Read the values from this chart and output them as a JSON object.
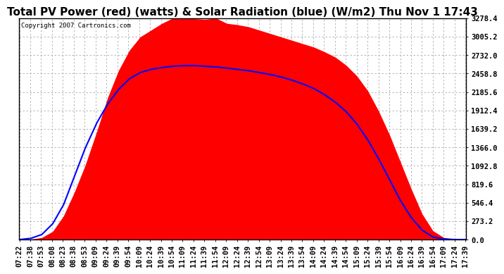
{
  "title": "Total PV Power (red) (watts) & Solar Radiation (blue) (W/m2) Thu Nov 1 17:43",
  "copyright": "Copyright 2007 Cartronics.com",
  "background_color": "#ffffff",
  "plot_bg_color": "#ffffff",
  "grid_color": "#aaaaaa",
  "y_max": 3278.4,
  "y_min": 0.0,
  "y_ticks": [
    0.0,
    273.2,
    546.4,
    819.6,
    1092.8,
    1366.0,
    1639.2,
    1912.4,
    2185.6,
    2458.8,
    2732.0,
    3005.2,
    3278.4
  ],
  "x_labels": [
    "07:22",
    "07:38",
    "07:53",
    "08:08",
    "08:23",
    "08:38",
    "08:53",
    "09:09",
    "09:24",
    "09:39",
    "09:54",
    "10:09",
    "10:24",
    "10:39",
    "10:54",
    "11:09",
    "11:24",
    "11:39",
    "11:54",
    "12:09",
    "12:24",
    "12:39",
    "12:54",
    "13:09",
    "13:24",
    "13:39",
    "13:54",
    "14:09",
    "14:24",
    "14:39",
    "14:54",
    "15:09",
    "15:24",
    "15:39",
    "15:54",
    "16:09",
    "16:24",
    "16:39",
    "16:54",
    "17:09",
    "17:24",
    "17:39"
  ],
  "pv_color": "#ff0000",
  "solar_color": "#0000ff",
  "title_fontsize": 11,
  "tick_fontsize": 7.5,
  "copyright_fontsize": 6.5,
  "solar_scale_factor": 9.33
}
